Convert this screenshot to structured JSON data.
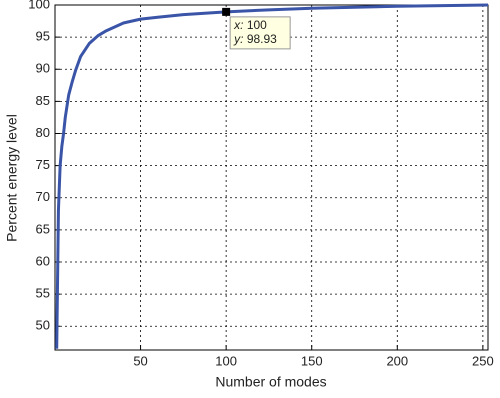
{
  "chart_data": {
    "type": "line",
    "xlabel": "Number of modes",
    "ylabel": "Percent energy level",
    "x": [
      1,
      2,
      3,
      4,
      5,
      6,
      8,
      10,
      12,
      15,
      20,
      25,
      30,
      40,
      50,
      60,
      75,
      100,
      125,
      150,
      200,
      253
    ],
    "series": [
      {
        "name": "Percent energy level",
        "color": "#3a55a8",
        "values": [
          46.5,
          68,
          75,
          78,
          80,
          82.5,
          86,
          88,
          89.8,
          92,
          94,
          95.2,
          96,
          97.2,
          97.8,
          98.1,
          98.5,
          98.93,
          99.25,
          99.5,
          99.8,
          100
        ]
      }
    ],
    "xlim": [
      0,
      253
    ],
    "ylim": [
      46.3,
      100
    ],
    "xticks": [
      50,
      100,
      150,
      200,
      250
    ],
    "yticks": [
      50,
      55,
      60,
      65,
      70,
      75,
      80,
      85,
      90,
      95,
      100
    ],
    "grid": true,
    "annotation": {
      "x_label": "x:",
      "x": 100,
      "y_label": "y:",
      "y": 98.93
    }
  }
}
